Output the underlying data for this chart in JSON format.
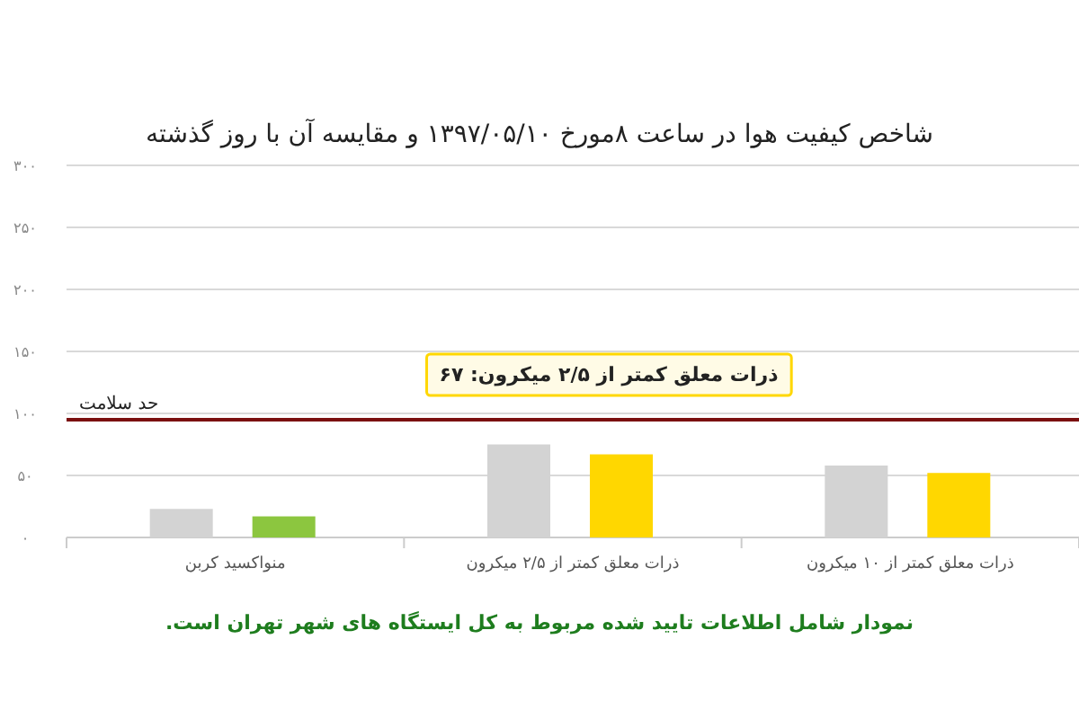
{
  "chart_data": {
    "type": "bar",
    "title": "شاخص کیفیت هوا در ساعت ۸مورخ ۱۳۹۷/۰۵/۱۰ و مقایسه آن با روز گذشته",
    "categories": [
      "منواکسید کربن",
      "ذرات معلق کمتر از ۲/۵ میکرون",
      "ذرات معلق کمتر از ۱۰ میکرون"
    ],
    "series": [
      {
        "color": "#d3d3d3",
        "values": [
          23,
          75,
          58
        ]
      },
      {
        "colors": [
          "#8cc63f",
          "#ffd700",
          "#ffd700"
        ],
        "values": [
          17,
          67,
          52
        ]
      }
    ],
    "ylim": [
      0,
      300
    ],
    "yticks": [
      {
        "value": 0,
        "label": "۰"
      },
      {
        "value": 50,
        "label": "۵۰"
      },
      {
        "value": 100,
        "label": "۱۰۰"
      },
      {
        "value": 150,
        "label": "۱۵۰"
      },
      {
        "value": 200,
        "label": "۲۰۰"
      },
      {
        "value": 250,
        "label": "۲۵۰"
      },
      {
        "value": 300,
        "label": "۳۰۰"
      }
    ],
    "grid": "y",
    "ref_lines": [
      {
        "axis": "y",
        "value": 95,
        "label": "حد سلامت",
        "color": "#7b1010"
      }
    ],
    "annotations": [
      "ذرات معلق کمتر از ۲/۵ میکرون: ۶۷",
      "نمودار شامل اطلاعات تایید شده مربوط به کل ایستگاه های شهر تهران است."
    ]
  }
}
